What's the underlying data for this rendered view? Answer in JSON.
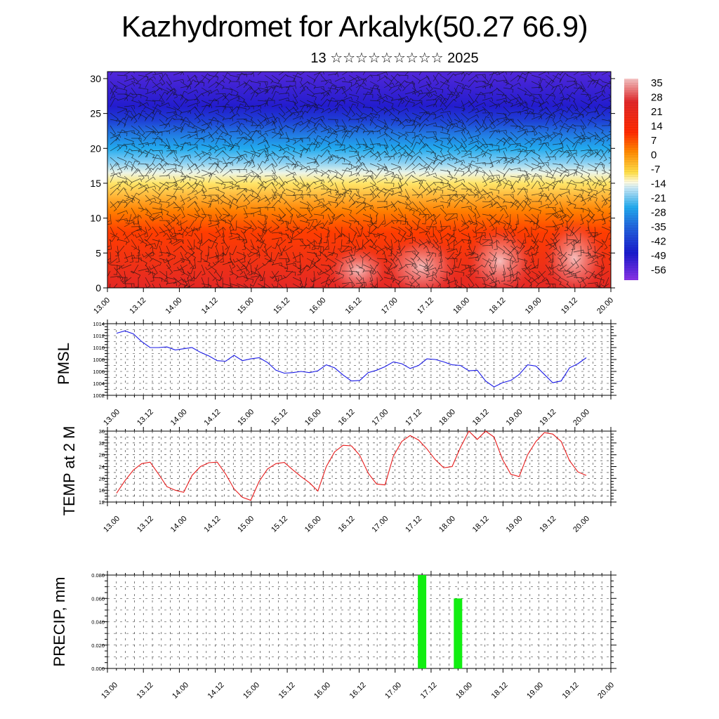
{
  "title": "Kazhydromet for Arkalyk(50.27 66.9)",
  "subtitle": "13 ☆☆☆☆☆☆☆☆☆ 2025",
  "time_ticks": [
    "13.00",
    "13.12",
    "14.00",
    "14.12",
    "15.00",
    "15.12",
    "16.00",
    "16.12",
    "17.00",
    "17.12",
    "18.00",
    "18.12",
    "19.00",
    "19.12",
    "20.00"
  ],
  "chart_data": [
    {
      "type": "heatmap",
      "name": "temperature-wind-section",
      "y_ticks": [
        0,
        5,
        10,
        15,
        20,
        25,
        30
      ],
      "ylim": [
        0,
        31
      ],
      "colorbar": {
        "labels": [
          "35",
          "28",
          "21",
          "14",
          "7",
          "0",
          "-7",
          "-14",
          "-21",
          "-28",
          "-35",
          "-42",
          "-49",
          "-56"
        ],
        "range": [
          -63,
          42
        ],
        "stops": [
          {
            "v": 42,
            "c": "#f4c4c4"
          },
          {
            "v": 30,
            "c": "#e0282a"
          },
          {
            "v": 14,
            "c": "#ff2a00"
          },
          {
            "v": 4,
            "c": "#ff8800"
          },
          {
            "v": -7,
            "c": "#ffe04a"
          },
          {
            "v": -12,
            "c": "#fffbe0"
          },
          {
            "v": -15,
            "c": "#c8e8f6"
          },
          {
            "v": -25,
            "c": "#22aaee"
          },
          {
            "v": -35,
            "c": "#2266dd"
          },
          {
            "v": -49,
            "c": "#1a1acc"
          },
          {
            "v": -63,
            "c": "#8a33e6"
          }
        ]
      },
      "profile": [
        {
          "h": 0,
          "t": 28
        },
        {
          "h": 8,
          "t": 12
        },
        {
          "h": 11,
          "t": 5
        },
        {
          "h": 15,
          "t": -8
        },
        {
          "h": 16.5,
          "t": -13
        },
        {
          "h": 18,
          "t": -19
        },
        {
          "h": 20,
          "t": -25
        },
        {
          "h": 22,
          "t": -32
        },
        {
          "h": 24,
          "t": -42
        },
        {
          "h": 26,
          "t": -50
        },
        {
          "h": 31,
          "t": -56
        }
      ]
    },
    {
      "type": "line",
      "ylabel": "PMSL",
      "ylim": [
        1002,
        1014
      ],
      "y_ticks": [
        "1002",
        "1004",
        "1006",
        "1008",
        "1010",
        "1012",
        "1014"
      ],
      "color": "#1a1ae6",
      "x_start": "13.00",
      "x_step_hours": 3,
      "values": [
        1012.4,
        1012.8,
        1012.3,
        1011.0,
        1010.0,
        1010.0,
        1010.1,
        1009.6,
        1009.8,
        1010.0,
        1009.2,
        1008.6,
        1007.8,
        1007.7,
        1008.7,
        1007.8,
        1008.1,
        1008.3,
        1007.5,
        1006.2,
        1005.7,
        1005.8,
        1006.0,
        1005.8,
        1006.1,
        1007.1,
        1006.6,
        1005.4,
        1004.4,
        1004.5,
        1005.8,
        1006.2,
        1006.8,
        1007.6,
        1007.3,
        1006.5,
        1007.0,
        1008.1,
        1008.0,
        1007.6,
        1007.1,
        1007.0,
        1006.1,
        1006.2,
        1004.4,
        1003.4,
        1004.1,
        1004.5,
        1005.5,
        1007.1,
        1006.9,
        1005.5,
        1004.1,
        1004.4,
        1006.6,
        1007.3,
        1008.3
      ]
    },
    {
      "type": "line",
      "ylabel": "TEMP at 2 M",
      "ylim": [
        12,
        36
      ],
      "y_ticks": [
        "12",
        "16",
        "20",
        "24",
        "28",
        "32",
        "36"
      ],
      "color": "#e61a1a",
      "x_start": "13.00",
      "x_step_hours": 3,
      "values": [
        15.0,
        19.2,
        22.8,
        25.0,
        25.5,
        21.5,
        17.2,
        16.0,
        15.3,
        21.0,
        24.0,
        25.3,
        25.5,
        21.5,
        16.5,
        13.6,
        12.6,
        19.0,
        23.2,
        25.0,
        25.4,
        22.9,
        20.6,
        18.5,
        15.7,
        24.0,
        29.0,
        31.2,
        31.0,
        27.8,
        21.8,
        18.1,
        17.8,
        27.5,
        32.5,
        34.5,
        33.0,
        30.0,
        26.3,
        23.6,
        24.0,
        30.5,
        36.0,
        33.2,
        36.0,
        34.0,
        26.5,
        21.4,
        20.6,
        28.0,
        32.5,
        35.5,
        35.0,
        32.5,
        26.0,
        22.2,
        21.0
      ]
    },
    {
      "type": "bar",
      "ylabel": "PRECIP, mm",
      "ylim": [
        0,
        0.08
      ],
      "y_ticks": [
        "0.000",
        "0.020",
        "0.040",
        "0.060",
        "0.080"
      ],
      "color": "#11ee11",
      "bars": [
        {
          "time": "17.09",
          "value": 0.08
        },
        {
          "time": "17.21",
          "value": 0.06
        }
      ]
    }
  ]
}
